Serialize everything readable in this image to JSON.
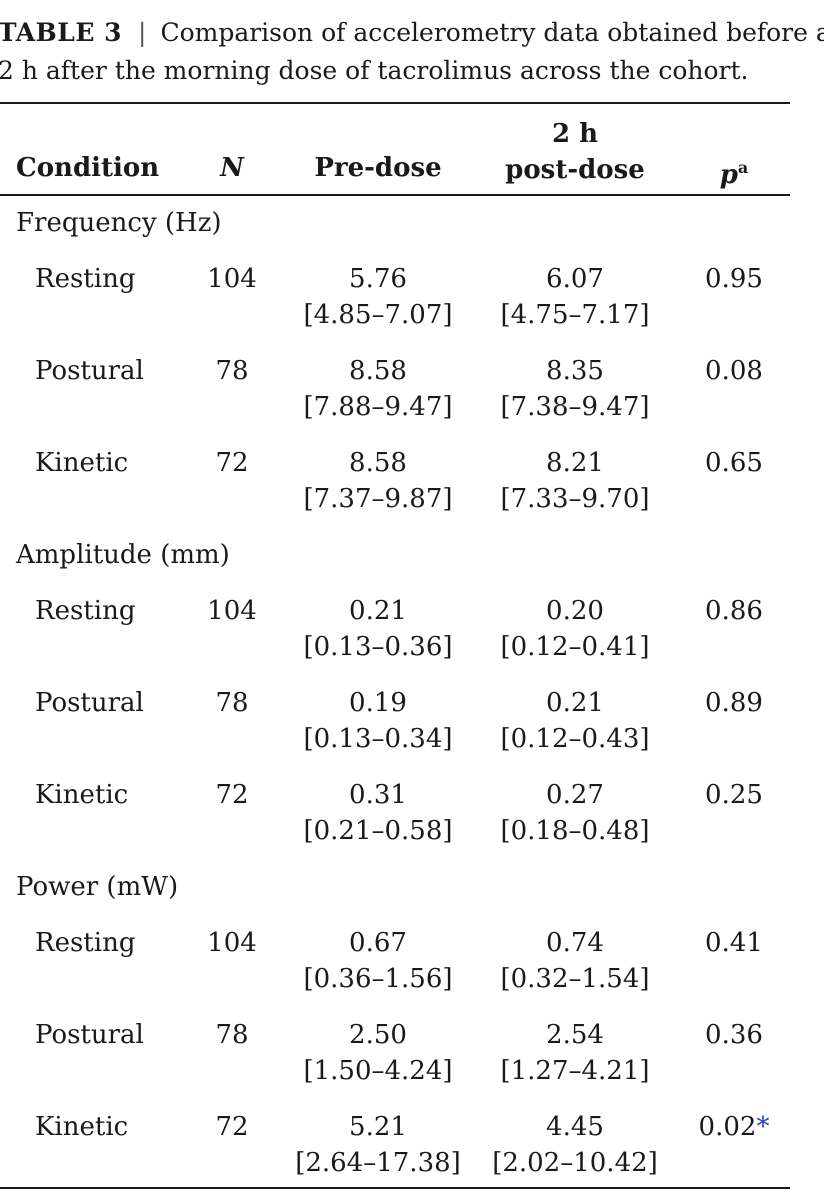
{
  "caption": {
    "label": "TABLE 3",
    "separator": "|",
    "text_line1": "Comparison of accelerometry data obtained before and",
    "text_line2": "2 h after the morning dose of tacrolimus across the cohort."
  },
  "header": {
    "condition": "Condition",
    "n": "N",
    "pre_dose": "Pre-dose",
    "post_dose_line1": "2 h",
    "post_dose_line2": "post-dose",
    "p": "p",
    "p_superscript": "a"
  },
  "groups": [
    {
      "title": "Frequency (Hz)",
      "rows": [
        {
          "condition": "Resting",
          "n": "104",
          "pre": "5.76",
          "pre_range": "[4.85–7.07]",
          "post": "6.07",
          "post_range": "[4.75–7.17]",
          "p": "0.95"
        },
        {
          "condition": "Postural",
          "n": "78",
          "pre": "8.58",
          "pre_range": "[7.88–9.47]",
          "post": "8.35",
          "post_range": "[7.38–9.47]",
          "p": "0.08"
        },
        {
          "condition": "Kinetic",
          "n": "72",
          "pre": "8.58",
          "pre_range": "[7.37–9.87]",
          "post": "8.21",
          "post_range": "[7.33–9.70]",
          "p": "0.65"
        }
      ]
    },
    {
      "title": "Amplitude (mm)",
      "rows": [
        {
          "condition": "Resting",
          "n": "104",
          "pre": "0.21",
          "pre_range": "[0.13–0.36]",
          "post": "0.20",
          "post_range": "[0.12–0.41]",
          "p": "0.86"
        },
        {
          "condition": "Postural",
          "n": "78",
          "pre": "0.19",
          "pre_range": "[0.13–0.34]",
          "post": "0.21",
          "post_range": "[0.12–0.43]",
          "p": "0.89"
        },
        {
          "condition": "Kinetic",
          "n": "72",
          "pre": "0.31",
          "pre_range": "[0.21–0.58]",
          "post": "0.27",
          "post_range": "[0.18–0.48]",
          "p": "0.25"
        }
      ]
    },
    {
      "title": "Power (mW)",
      "rows": [
        {
          "condition": "Resting",
          "n": "104",
          "pre": "0.67",
          "pre_range": "[0.36–1.56]",
          "post": "0.74",
          "post_range": "[0.32–1.54]",
          "p": "0.41"
        },
        {
          "condition": "Postural",
          "n": "78",
          "pre": "2.50",
          "pre_range": "[1.50–4.24]",
          "post": "2.54",
          "post_range": "[1.27–4.21]",
          "p": "0.36"
        },
        {
          "condition": "Kinetic",
          "n": "72",
          "pre": "5.21",
          "pre_range": "[2.64–17.38]",
          "post": "4.45",
          "post_range": "[2.02–10.42]",
          "p": "0.02",
          "p_mark": "*"
        }
      ]
    }
  ],
  "colors": {
    "text": "#1a1a1a",
    "significance_mark": "#1f3fb5"
  }
}
